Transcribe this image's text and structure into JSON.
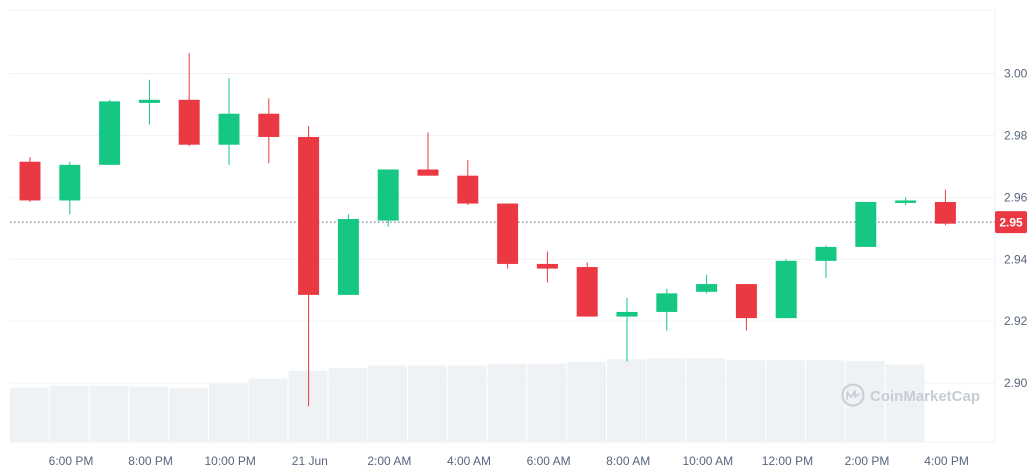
{
  "chart_data": {
    "type": "candlestick",
    "x_tick_labels": [
      "6:00 PM",
      "8:00 PM",
      "10:00 PM",
      "21 Jun",
      "2:00 AM",
      "4:00 AM",
      "6:00 AM",
      "8:00 AM",
      "10:00 AM",
      "12:00 PM",
      "2:00 PM",
      "4:00 PM"
    ],
    "y_tick_labels": [
      "3.00",
      "2.98",
      "2.96",
      "2.94",
      "2.92",
      "2.90"
    ],
    "y_ticks": [
      3.0,
      2.98,
      2.96,
      2.94,
      2.92,
      2.9
    ],
    "ylim": [
      2.881,
      3.0205
    ],
    "current_price": 2.952,
    "current_price_label": "2.95",
    "up_color": "#16c784",
    "down_color": "#ea3943",
    "volume_color": "#eff2f5",
    "grid": true,
    "candles": [
      {
        "o": 2.9715,
        "h": 2.973,
        "l": 2.9585,
        "c": 2.959
      },
      {
        "o": 2.959,
        "h": 2.9715,
        "l": 2.9545,
        "c": 2.9705
      },
      {
        "o": 2.9705,
        "h": 2.9915,
        "l": 2.9705,
        "c": 2.991
      },
      {
        "o": 2.9905,
        "h": 2.998,
        "l": 2.9835,
        "c": 2.9915
      },
      {
        "o": 2.9915,
        "h": 3.0065,
        "l": 2.9765,
        "c": 2.977
      },
      {
        "o": 2.977,
        "h": 2.9985,
        "l": 2.9705,
        "c": 2.987
      },
      {
        "o": 2.987,
        "h": 2.992,
        "l": 2.971,
        "c": 2.9795
      },
      {
        "o": 2.9795,
        "h": 2.983,
        "l": 2.8925,
        "c": 2.9285
      },
      {
        "o": 2.9285,
        "h": 2.9545,
        "l": 2.9285,
        "c": 2.953
      },
      {
        "o": 2.9525,
        "h": 2.969,
        "l": 2.9505,
        "c": 2.969
      },
      {
        "o": 2.969,
        "h": 2.981,
        "l": 2.967,
        "c": 2.967
      },
      {
        "o": 2.967,
        "h": 2.972,
        "l": 2.9575,
        "c": 2.958
      },
      {
        "o": 2.958,
        "h": 2.958,
        "l": 2.937,
        "c": 2.9385
      },
      {
        "o": 2.9385,
        "h": 2.9425,
        "l": 2.9325,
        "c": 2.937
      },
      {
        "o": 2.9375,
        "h": 2.939,
        "l": 2.9215,
        "c": 2.9215
      },
      {
        "o": 2.9215,
        "h": 2.9275,
        "l": 2.907,
        "c": 2.923
      },
      {
        "o": 2.923,
        "h": 2.9305,
        "l": 2.917,
        "c": 2.929
      },
      {
        "o": 2.9295,
        "h": 2.935,
        "l": 2.929,
        "c": 2.932
      },
      {
        "o": 2.932,
        "h": 2.932,
        "l": 2.917,
        "c": 2.921
      },
      {
        "o": 2.921,
        "h": 2.94,
        "l": 2.921,
        "c": 2.9395
      },
      {
        "o": 2.9395,
        "h": 2.9445,
        "l": 2.934,
        "c": 2.944
      },
      {
        "o": 2.944,
        "h": 2.9585,
        "l": 2.944,
        "c": 2.9585
      },
      {
        "o": 2.9585,
        "h": 2.96,
        "l": 2.9575,
        "c": 2.959
      },
      {
        "o": 2.9585,
        "h": 2.9625,
        "l": 2.951,
        "c": 2.9515
      }
    ],
    "volume": [
      0.62,
      0.64,
      0.64,
      0.63,
      0.61,
      0.66,
      0.72,
      0.81,
      0.84,
      0.87,
      0.87,
      0.87,
      0.89,
      0.89,
      0.91,
      0.94,
      0.95,
      0.95,
      0.93,
      0.93,
      0.93,
      0.92,
      0.88
    ]
  },
  "watermark": {
    "text": "CoinMarketCap",
    "icon": "coinmarketcap-logo-icon"
  }
}
